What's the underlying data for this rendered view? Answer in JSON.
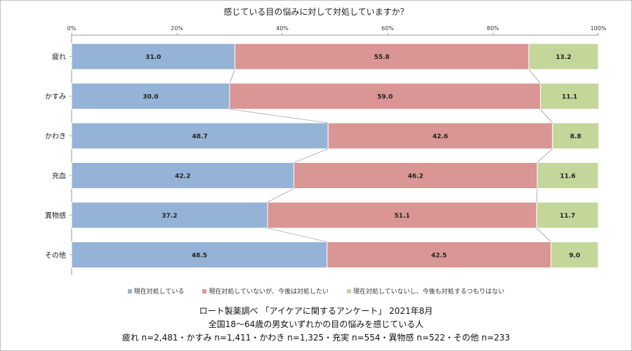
{
  "chart_data": {
    "type": "bar",
    "orientation": "horizontal-stacked-100",
    "title": "感じている目の悩みに対して対処していますか？",
    "categories": [
      "疲れ",
      "かすみ",
      "かわき",
      "充血",
      "異物感",
      "その他"
    ],
    "series": [
      {
        "name": "現在対処している",
        "values": [
          31.0,
          30.0,
          48.7,
          42.2,
          37.2,
          48.5
        ],
        "labels": [
          "31.0",
          "30.0",
          "48.7",
          "42.2",
          "37.2",
          "48.5"
        ],
        "color": "#95b3d7"
      },
      {
        "name": "現在対処していないが、今後は対処したい",
        "values": [
          55.8,
          59.0,
          42.6,
          46.2,
          51.1,
          42.5
        ],
        "labels": [
          "55.8",
          "59.0",
          "42.6",
          "46.2",
          "51.1",
          "42.5"
        ],
        "color": "#da9694"
      },
      {
        "name": "現在対処していないし、今後も対処するつもりはない",
        "values": [
          13.2,
          11.1,
          8.8,
          11.6,
          11.7,
          9.0
        ],
        "labels": [
          "13.2",
          "11.1",
          "8.8",
          "11.6",
          "11.7",
          "9.0"
        ],
        "color": "#c4d79b"
      }
    ],
    "xaxis_ticks": [
      "0%",
      "20%",
      "40%",
      "60%",
      "80%",
      "100%"
    ],
    "xlim": [
      0,
      100
    ],
    "grid": false,
    "legend_position": "bottom",
    "series_lines": true
  },
  "footer": {
    "line1": "ロート製薬調べ 「アイケアに関するアンケート」 2021年8月",
    "line2": "全国18～64歳の男女いずれかの目の悩みを感じている人",
    "line3": "疲れ n=2,481・かすみ n=1,411・かわき n=1,325・充実 n=554・異物感 n=522・その他 n=233"
  }
}
